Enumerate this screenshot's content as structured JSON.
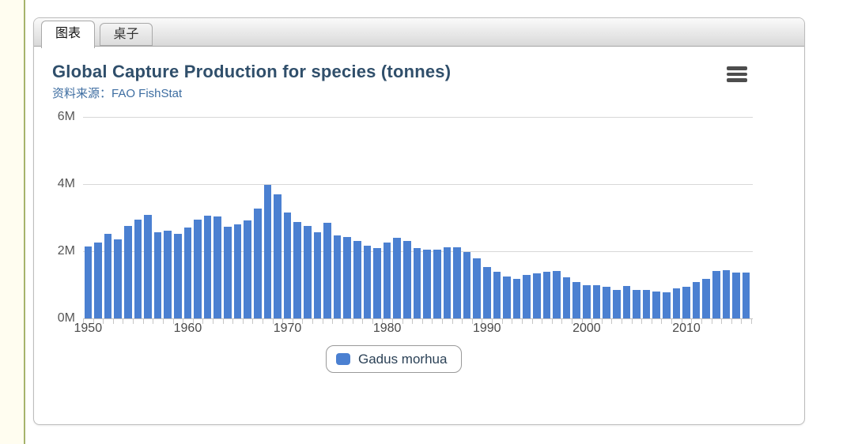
{
  "accent": {
    "left_line_color": "#a6b36c"
  },
  "tabs": [
    {
      "label": "图表",
      "active": true
    },
    {
      "label": "桌子",
      "active": false
    }
  ],
  "toolbar": {
    "menu_icon": "hamburger-menu-icon"
  },
  "chart_data": {
    "type": "bar",
    "title": "Global Capture Production for species (tonnes)",
    "subtitle": "资料来源：FAO FishStat",
    "xlabel": "",
    "ylabel": "",
    "values_unit": "millions of tonnes",
    "ylim": [
      0,
      6
    ],
    "grid": true,
    "legend_position": "bottom-center",
    "yticks": [
      {
        "value": 0,
        "label": "0M"
      },
      {
        "value": 2,
        "label": "2M"
      },
      {
        "value": 4,
        "label": "4M"
      },
      {
        "value": 6,
        "label": "6M"
      }
    ],
    "xticks": [
      1950,
      1960,
      1970,
      1980,
      1990,
      2000,
      2010
    ],
    "x_start_year": 1950,
    "x_end_year": 2016,
    "series": [
      {
        "name": "Gadus morhua",
        "color": "#4b80d1",
        "values": [
          2.15,
          2.26,
          2.52,
          2.36,
          2.76,
          2.95,
          3.09,
          2.57,
          2.62,
          2.52,
          2.71,
          2.95,
          3.07,
          3.04,
          2.74,
          2.81,
          2.92,
          3.26,
          3.97,
          3.7,
          3.16,
          2.88,
          2.76,
          2.57,
          2.85,
          2.48,
          2.43,
          2.31,
          2.17,
          2.09,
          2.26,
          2.4,
          2.31,
          2.1,
          2.04,
          2.05,
          2.12,
          2.12,
          1.97,
          1.8,
          1.53,
          1.4,
          1.24,
          1.17,
          1.29,
          1.33,
          1.4,
          1.41,
          1.23,
          1.08,
          0.99,
          1.0,
          0.95,
          0.85,
          0.96,
          0.84,
          0.84,
          0.81,
          0.78,
          0.89,
          0.93,
          1.08,
          1.17,
          1.41,
          1.44,
          1.37,
          1.37
        ]
      }
    ]
  }
}
